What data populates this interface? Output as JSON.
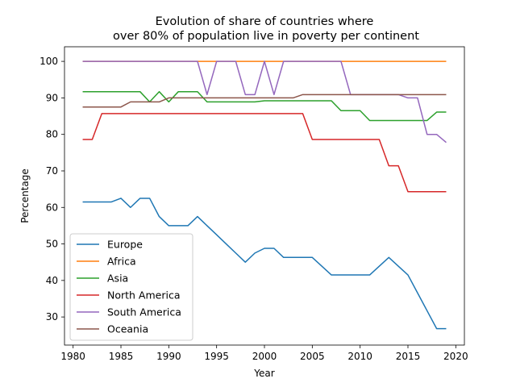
{
  "chart_data": {
    "type": "line",
    "title_line1": "Evolution of share of countries where",
    "title_line2": "over 80% of population live in poverty per continent",
    "xlabel": "Year",
    "ylabel": "Percentage",
    "xlim": [
      1979.1,
      2020.9
    ],
    "ylim": [
      22.3,
      104.0
    ],
    "xticks": [
      1980,
      1985,
      1990,
      1995,
      2000,
      2005,
      2010,
      2015,
      2020
    ],
    "yticks": [
      30,
      40,
      50,
      60,
      70,
      80,
      90,
      100
    ],
    "grid": false,
    "legend_position": "lower-left",
    "x": [
      1981,
      1982,
      1983,
      1984,
      1985,
      1986,
      1987,
      1988,
      1989,
      1990,
      1991,
      1992,
      1993,
      1994,
      1995,
      1996,
      1997,
      1998,
      1999,
      2000,
      2001,
      2002,
      2003,
      2004,
      2005,
      2006,
      2007,
      2008,
      2009,
      2010,
      2011,
      2012,
      2013,
      2014,
      2015,
      2016,
      2017,
      2018,
      2019
    ],
    "series": [
      {
        "name": "Europe",
        "color": "#1f77b4",
        "values": [
          61.5,
          61.5,
          61.5,
          61.5,
          62.5,
          60.0,
          62.5,
          62.5,
          57.5,
          55.0,
          55.0,
          55.0,
          57.5,
          55.0,
          52.5,
          50.0,
          47.5,
          45.0,
          47.5,
          48.8,
          48.8,
          46.3,
          46.3,
          46.3,
          46.3,
          43.9,
          41.5,
          41.5,
          41.5,
          41.5,
          41.5,
          43.9,
          46.3,
          43.9,
          41.5,
          36.6,
          31.7,
          26.8,
          26.8
        ]
      },
      {
        "name": "Africa",
        "color": "#ff7f0e",
        "values": [
          100,
          100,
          100,
          100,
          100,
          100,
          100,
          100,
          100,
          100,
          100,
          100,
          100,
          100,
          100,
          100,
          100,
          100,
          100,
          100,
          100,
          100,
          100,
          100,
          100,
          100,
          100,
          100,
          100,
          100,
          100,
          100,
          100,
          100,
          100,
          100,
          100,
          100,
          100
        ]
      },
      {
        "name": "Asia",
        "color": "#2ca02c",
        "values": [
          91.7,
          91.7,
          91.7,
          91.7,
          91.7,
          91.7,
          91.7,
          88.9,
          91.7,
          88.9,
          91.7,
          91.7,
          91.7,
          88.9,
          88.9,
          88.9,
          88.9,
          88.9,
          88.9,
          89.2,
          89.2,
          89.2,
          89.2,
          89.2,
          89.2,
          89.2,
          89.2,
          86.5,
          86.5,
          86.5,
          83.8,
          83.8,
          83.8,
          83.8,
          83.8,
          83.8,
          83.8,
          86.1,
          86.1
        ]
      },
      {
        "name": "North America",
        "color": "#d62728",
        "values": [
          78.6,
          78.6,
          85.7,
          85.7,
          85.7,
          85.7,
          85.7,
          85.7,
          85.7,
          85.7,
          85.7,
          85.7,
          85.7,
          85.7,
          85.7,
          85.7,
          85.7,
          85.7,
          85.7,
          85.7,
          85.7,
          85.7,
          85.7,
          85.7,
          78.6,
          78.6,
          78.6,
          78.6,
          78.6,
          78.6,
          78.6,
          78.6,
          71.4,
          71.4,
          64.3,
          64.3,
          64.3,
          64.3,
          64.3
        ]
      },
      {
        "name": "South America",
        "color": "#9467bd",
        "values": [
          100,
          100,
          100,
          100,
          100,
          100,
          100,
          100,
          100,
          100,
          100,
          100,
          100,
          90.9,
          100,
          100,
          100,
          90.9,
          90.9,
          100,
          90.9,
          100,
          100,
          100,
          100,
          100,
          100,
          100,
          90.9,
          90.9,
          90.9,
          90.9,
          90.9,
          90.9,
          90.0,
          90.0,
          80.0,
          80.0,
          77.8
        ]
      },
      {
        "name": "Oceania",
        "color": "#8c564b",
        "values": [
          87.5,
          87.5,
          87.5,
          87.5,
          87.5,
          88.9,
          88.9,
          88.9,
          88.9,
          90.0,
          90.0,
          90.0,
          90.0,
          90.0,
          90.0,
          90.0,
          90.0,
          90.0,
          90.0,
          90.0,
          90.0,
          90.0,
          90.0,
          90.9,
          90.9,
          90.9,
          90.9,
          90.9,
          90.9,
          90.9,
          90.9,
          90.9,
          90.9,
          90.9,
          90.9,
          90.9,
          90.9,
          90.9,
          90.9
        ]
      }
    ]
  }
}
